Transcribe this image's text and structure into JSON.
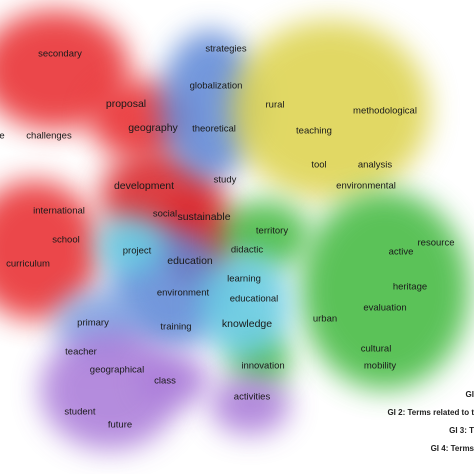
{
  "clusters": {
    "red": "#e8282b",
    "blue": "#5b86d6",
    "yellow": "#dcd24a",
    "green": "#3fb83c",
    "purple": "#a878d8",
    "cyan": "#5fc8e0"
  },
  "terms": [
    {
      "id": "secondary",
      "label": "secondary",
      "c": "red"
    },
    {
      "id": "challenges",
      "label": "challenges",
      "c": "red"
    },
    {
      "id": "e",
      "label": "e",
      "c": "red"
    },
    {
      "id": "proposal",
      "label": "proposal",
      "c": "red"
    },
    {
      "id": "geography",
      "label": "geography",
      "c": "red"
    },
    {
      "id": "development",
      "label": "development",
      "c": "red"
    },
    {
      "id": "international",
      "label": "international",
      "c": "red"
    },
    {
      "id": "school",
      "label": "school",
      "c": "red"
    },
    {
      "id": "curriculum",
      "label": "curriculum",
      "c": "red"
    },
    {
      "id": "social",
      "label": "social",
      "c": "red"
    },
    {
      "id": "sustainable",
      "label": "sustainable",
      "c": "red"
    },
    {
      "id": "education",
      "label": "education",
      "c": "red"
    },
    {
      "id": "strategies",
      "label": "strategies",
      "c": "yellow"
    },
    {
      "id": "globalization",
      "label": "globalization",
      "c": "blue"
    },
    {
      "id": "theoretical",
      "label": "theoretical",
      "c": "blue"
    },
    {
      "id": "study",
      "label": "study",
      "c": "blue"
    },
    {
      "id": "rural",
      "label": "rural",
      "c": "yellow"
    },
    {
      "id": "teaching",
      "label": "teaching",
      "c": "yellow"
    },
    {
      "id": "methodological",
      "label": "methodological",
      "c": "yellow"
    },
    {
      "id": "tool",
      "label": "tool",
      "c": "yellow"
    },
    {
      "id": "analysis",
      "label": "analysis",
      "c": "yellow"
    },
    {
      "id": "environmental",
      "label": "environmental",
      "c": "yellow"
    },
    {
      "id": "territory",
      "label": "territory",
      "c": "green"
    },
    {
      "id": "didactic",
      "label": "didactic",
      "c": "green"
    },
    {
      "id": "active",
      "label": "active",
      "c": "green"
    },
    {
      "id": "resource",
      "label": "resource",
      "c": "green"
    },
    {
      "id": "heritage",
      "label": "heritage",
      "c": "green"
    },
    {
      "id": "evaluation",
      "label": "evaluation",
      "c": "green"
    },
    {
      "id": "urban",
      "label": "urban",
      "c": "green"
    },
    {
      "id": "cultural",
      "label": "cultural",
      "c": "green"
    },
    {
      "id": "mobility",
      "label": "mobility",
      "c": "green"
    },
    {
      "id": "innovation",
      "label": "innovation",
      "c": "green"
    },
    {
      "id": "project",
      "label": "project",
      "c": "blue"
    },
    {
      "id": "learning",
      "label": "learning",
      "c": "cyan"
    },
    {
      "id": "environment",
      "label": "environment",
      "c": "blue"
    },
    {
      "id": "educational",
      "label": "educational",
      "c": "cyan"
    },
    {
      "id": "knowledge",
      "label": "knowledge",
      "c": "cyan"
    },
    {
      "id": "primary",
      "label": "primary",
      "c": "blue"
    },
    {
      "id": "training",
      "label": "training",
      "c": "blue"
    },
    {
      "id": "teacher",
      "label": "teacher",
      "c": "purple"
    },
    {
      "id": "geographical",
      "label": "geographical",
      "c": "purple"
    },
    {
      "id": "class",
      "label": "class",
      "c": "purple"
    },
    {
      "id": "activities",
      "label": "activities",
      "c": "purple"
    },
    {
      "id": "student",
      "label": "student",
      "c": "purple"
    },
    {
      "id": "future",
      "label": "future",
      "c": "purple"
    }
  ],
  "legend": [
    "GI",
    "GI 2: Terms related to t",
    "GI 3: T",
    "GI 4: Terms"
  ]
}
